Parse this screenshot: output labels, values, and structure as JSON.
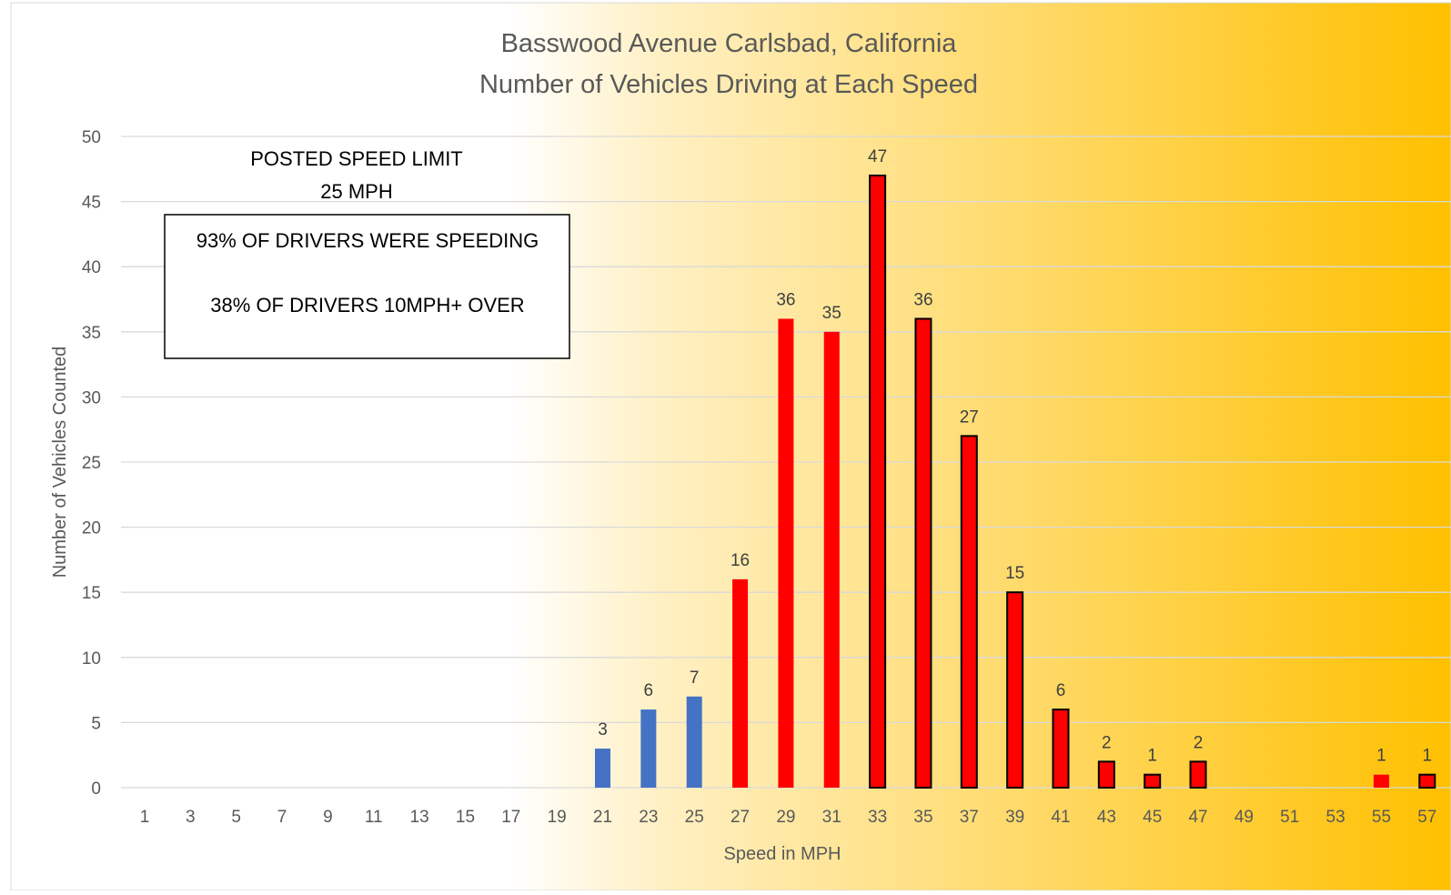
{
  "chart_data": {
    "type": "bar",
    "title_lines": [
      "Basswood Avenue Carlsbad, California",
      "Number of Vehicles Driving at Each Speed"
    ],
    "xlabel": "Speed in MPH",
    "ylabel": "Number of Vehicles Counted",
    "ylim": [
      0,
      50
    ],
    "y_ticks": [
      0,
      5,
      10,
      15,
      20,
      25,
      30,
      35,
      40,
      45,
      50
    ],
    "grid": true,
    "x": [
      1,
      3,
      5,
      7,
      9,
      11,
      13,
      15,
      17,
      19,
      21,
      23,
      25,
      27,
      29,
      31,
      33,
      35,
      37,
      39,
      41,
      43,
      45,
      47,
      49,
      51,
      53,
      55,
      57
    ],
    "values": [
      0,
      0,
      0,
      0,
      0,
      0,
      0,
      0,
      0,
      0,
      3,
      6,
      7,
      16,
      36,
      35,
      47,
      36,
      27,
      15,
      6,
      2,
      1,
      2,
      0,
      0,
      0,
      1,
      1
    ],
    "bar_colors": {
      "at_or_below_limit": "#4472c4",
      "above_limit": "#ff0000",
      "ten_plus_over_limit_outline": "#000000"
    },
    "background_gradient": [
      "#ffffff",
      "#ffc000"
    ],
    "annotations": {
      "posted_limit_line1": "POSTED SPEED LIMIT",
      "posted_limit_line2": "25 MPH",
      "box_line1": "93% OF DRIVERS WERE SPEEDING",
      "box_line2": "38% OF DRIVERS 10MPH+ OVER"
    }
  }
}
